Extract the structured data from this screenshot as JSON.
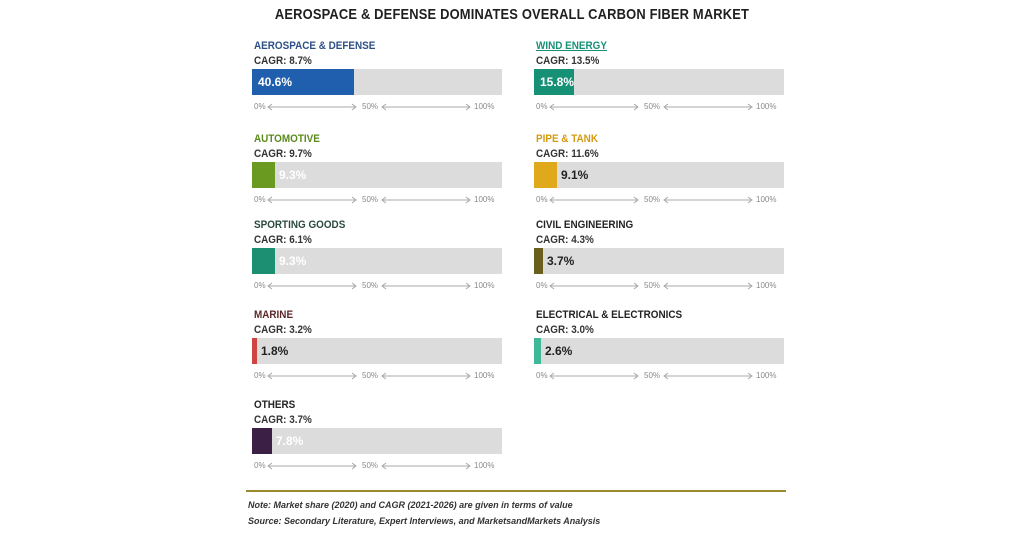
{
  "title": "AEROSPACE & DEFENSE DOMINATES OVERALL CARBON FIBER MARKET",
  "note": "Note: Market share (2020) and CAGR (2021-2026) are given in terms of value",
  "source": "Source: Secondary Literature, Expert Interviews, and MarketsandMarkets Analysis",
  "chart_data": {
    "type": "bar",
    "title": "AEROSPACE & DEFENSE DOMINATES OVERALL CARBON FIBER MARKET",
    "xlim": [
      0,
      100
    ],
    "axis_ticks": [
      "0%",
      "50%",
      "100%"
    ],
    "grid": false,
    "categories": [
      "AEROSPACE & DEFENSE",
      "WIND ENERGY",
      "AUTOMOTIVE",
      "PIPE & TANK",
      "SPORTING GOODS",
      "CIVIL ENGINEERING",
      "MARINE",
      "ELECTRICAL & ELECTRONICS",
      "OTHERS"
    ],
    "series": [
      {
        "name": "Market share",
        "values": [
          40.6,
          15.8,
          9.3,
          9.1,
          9.3,
          3.7,
          1.8,
          2.6,
          7.8
        ]
      },
      {
        "name": "CAGR",
        "values": [
          8.7,
          13.5,
          9.7,
          11.6,
          6.1,
          4.3,
          3.2,
          3.0,
          3.7
        ]
      }
    ],
    "panels": [
      {
        "category": "AEROSPACE & DEFENSE",
        "cagr_label": "CAGR: 8.7%",
        "share": 40.6,
        "share_label": "40.6%",
        "color": "#1f5fae",
        "label_color": "#2e4f86",
        "text_color": "#ffffff"
      },
      {
        "category": "WIND ENERGY",
        "cagr_label": "CAGR: 13.5%",
        "share": 15.8,
        "share_label": "15.8%",
        "color": "#169176",
        "label_color": "#169176",
        "text_color": "#ffffff",
        "underline": true
      },
      {
        "category": "AUTOMOTIVE",
        "cagr_label": "CAGR: 9.7%",
        "share": 9.3,
        "share_label": "9.3%",
        "color": "#6a9a1f",
        "label_color": "#5a8a1c",
        "text_color": "#ffffff"
      },
      {
        "category": "PIPE & TANK",
        "cagr_label": "CAGR: 11.6%",
        "share": 9.1,
        "share_label": "9.1%",
        "color": "#e0a91b",
        "label_color": "#d59a12",
        "text_color": "#222222"
      },
      {
        "category": "SPORTING GOODS",
        "cagr_label": "CAGR: 6.1%",
        "share": 9.3,
        "share_label": "9.3%",
        "color": "#1c8f72",
        "label_color": "#2a4b3d",
        "text_color": "#ffffff"
      },
      {
        "category": "CIVIL ENGINEERING",
        "cagr_label": "CAGR: 4.3%",
        "share": 3.7,
        "share_label": "3.7%",
        "color": "#6b5f1e",
        "label_color": "#222222",
        "text_color": "#222222"
      },
      {
        "category": "MARINE",
        "cagr_label": "CAGR: 3.2%",
        "share": 1.8,
        "share_label": "1.8%",
        "color": "#d0453f",
        "label_color": "#5a2a2a",
        "text_color": "#222222"
      },
      {
        "category": "ELECTRICAL & ELECTRONICS",
        "cagr_label": "CAGR: 3.0%",
        "share": 2.6,
        "share_label": "2.6%",
        "color": "#3fb89a",
        "label_color": "#222222",
        "text_color": "#222222"
      },
      {
        "category": "OTHERS",
        "cagr_label": "CAGR: 3.7%",
        "share": 7.8,
        "share_label": "7.8%",
        "color": "#3b1f44",
        "label_color": "#222222",
        "text_color": "#ffffff"
      }
    ]
  }
}
